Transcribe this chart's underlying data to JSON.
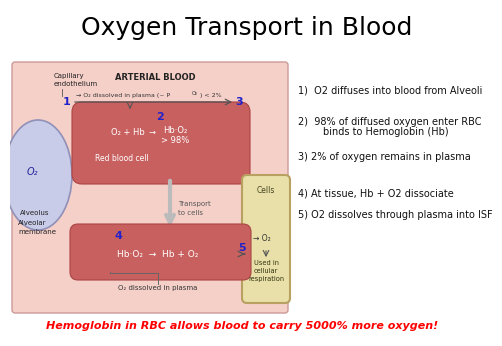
{
  "title": "Oxygen Transport in Blood",
  "title_fontsize": 18,
  "title_color": "#000000",
  "bg_color": "#ffffff",
  "diagram_bg": "#f5d0c8",
  "rbc_color": "#c96060",
  "alveolus_fill": "#c8cce8",
  "alveolus_edge": "#9090b8",
  "cell_color": "#e8e0a8",
  "cell_border": "#b8a060",
  "step_color": "#2222cc",
  "arrow_color": "#888888",
  "transport_arrow_color": "#aaaaaa",
  "bottom_text": "Hemoglobin in RBC allows blood to carry 5000% more oxygen!",
  "bottom_color": "#ff0000",
  "note1": "1)  O2 diffuses into blood from Alveoli",
  "note2a": "2)  98% of diffused oxygen enter RBC",
  "note2b": "        binds to Hemoglobin (Hb)",
  "note3": "3) 2% of oxygen remains in plasma",
  "note4": "4) At tissue, Hb + O2 dissociate",
  "note5": "5) O2 dissolves through plasma into ISF"
}
